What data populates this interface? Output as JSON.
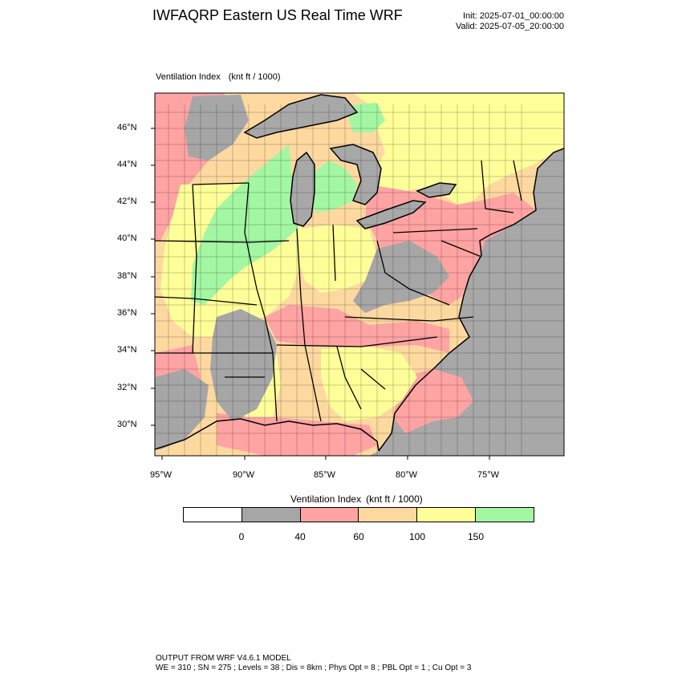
{
  "header": {
    "title": "IWFAQRP Eastern US Real Time WRF",
    "init_label": "Init: 2025-07-01_00:00:00",
    "valid_label": "Valid: 2025-07-05_20:00:00"
  },
  "field": {
    "name": "Ventilation Index",
    "units": "(knt ft / 1000)"
  },
  "map": {
    "projection": "Lambert conformal, Eastern US",
    "latitude_ticks": [
      "46°N",
      "44°N",
      "42°N",
      "40°N",
      "38°N",
      "36°N",
      "34°N",
      "32°N",
      "30°N"
    ],
    "longitude_ticks": [
      "95°W",
      "90°W",
      "85°W",
      "80°W",
      "75°W"
    ],
    "boundaries": [
      "state lines",
      "county lines",
      "coastline",
      "Great Lakes"
    ],
    "colors": {
      "ocean_lakes": "#a8a8a8",
      "frame": "#000000"
    }
  },
  "legend": {
    "title": "Ventilation Index",
    "units": "(knt ft / 1000)",
    "bins": [
      {
        "color": "#ffffff"
      },
      {
        "color": "#a6a6a6"
      },
      {
        "color": "#ffa3a3"
      },
      {
        "color": "#fdd9a0"
      },
      {
        "color": "#ffff99"
      },
      {
        "color": "#a3f7a3"
      }
    ],
    "tick_labels": [
      "0",
      "40",
      "60",
      "100",
      "150"
    ]
  },
  "footer": {
    "line1": "OUTPUT FROM WRF V4.6.1 MODEL",
    "line2": "WE = 310 ; SN = 275 ; Levels = 38 ; Dis = 8km ; Phys Opt = 8 ; PBL Opt = 1 ; Cu Opt = 3"
  }
}
